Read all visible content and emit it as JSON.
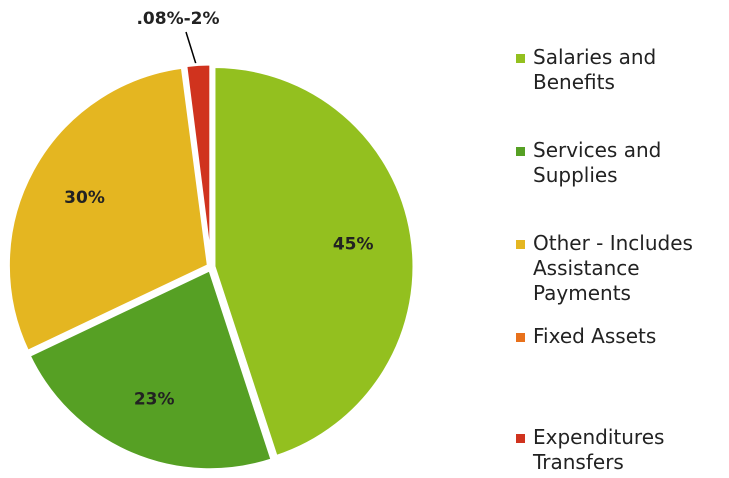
{
  "chart_data": {
    "type": "pie",
    "annotation": ".08%-2%",
    "categories": [
      "Salaries and Benefits",
      "Services and Supplies",
      "Other - Includes Assistance Payments",
      "Fixed Assets",
      "Expenditures Transfers"
    ],
    "values": [
      45,
      23,
      30,
      0.08,
      2
    ],
    "value_labels": [
      "45%",
      "23%",
      "30%",
      null,
      null
    ],
    "colors": [
      "#93c01f",
      "#56a024",
      "#e4b621",
      "#e8711b",
      "#d0331e"
    ],
    "legend": "right"
  }
}
